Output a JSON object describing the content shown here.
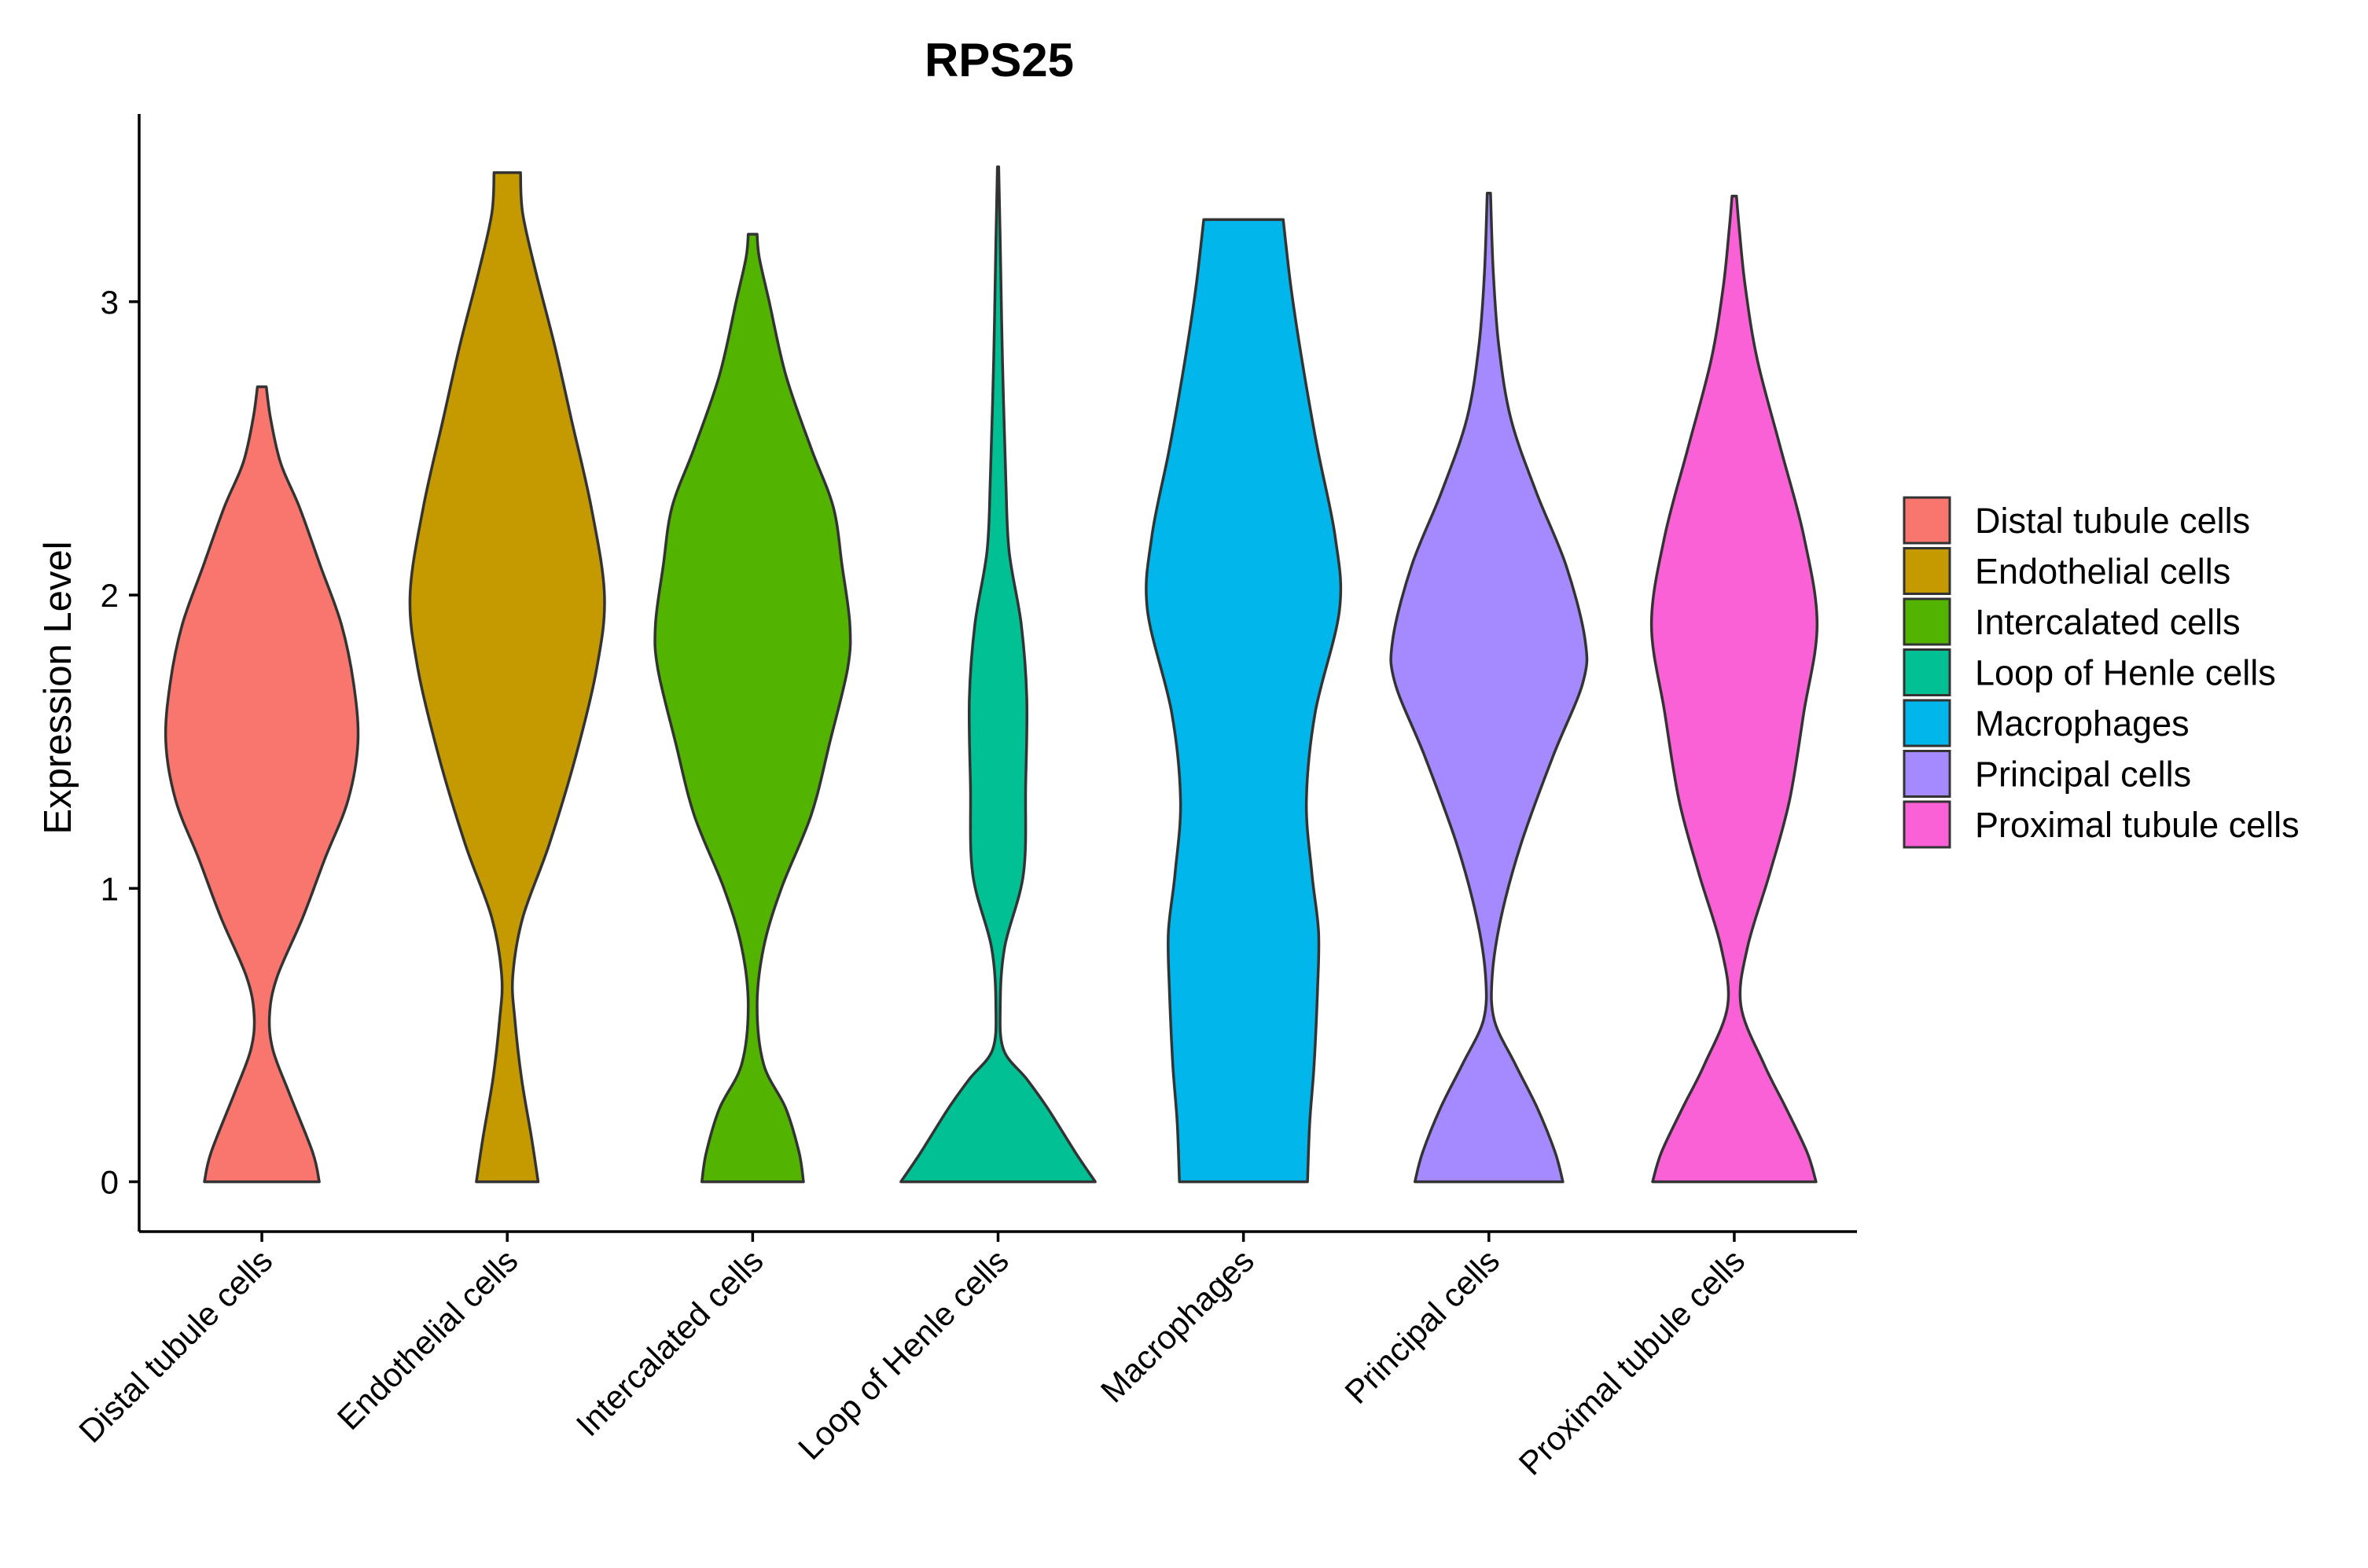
{
  "chart_data": {
    "type": "violin",
    "title": "RPS25",
    "xlabel": "",
    "ylabel": "Expression Level",
    "ylim": [
      -0.17,
      3.64
    ],
    "yticks": [
      0,
      1,
      2,
      3
    ],
    "grid": false,
    "legend_position": "right",
    "categories": [
      "Distal tubule cells",
      "Endothelial cells",
      "Intercalated cells",
      "Loop of Henle cells",
      "Macrophages",
      "Principal cells",
      "Proximal tubule cells"
    ],
    "series": [
      {
        "name": "Distal tubule cells",
        "color": "#F8766D",
        "ymin": 0,
        "ymax": 2.71,
        "profile": [
          [
            0,
            0.52
          ],
          [
            0.1,
            0.46
          ],
          [
            0.3,
            0.25
          ],
          [
            0.45,
            0.1
          ],
          [
            0.57,
            0.07
          ],
          [
            0.7,
            0.14
          ],
          [
            0.9,
            0.37
          ],
          [
            1.1,
            0.57
          ],
          [
            1.3,
            0.78
          ],
          [
            1.5,
            0.87
          ],
          [
            1.7,
            0.83
          ],
          [
            1.9,
            0.72
          ],
          [
            2.1,
            0.53
          ],
          [
            2.3,
            0.34
          ],
          [
            2.45,
            0.17
          ],
          [
            2.6,
            0.08
          ],
          [
            2.71,
            0.04
          ]
        ]
      },
      {
        "name": "Endothelial cells",
        "color": "#C49A00",
        "ymin": 0,
        "ymax": 3.44,
        "profile": [
          [
            0,
            0.28
          ],
          [
            0.15,
            0.22
          ],
          [
            0.35,
            0.13
          ],
          [
            0.55,
            0.07
          ],
          [
            0.7,
            0.05
          ],
          [
            0.9,
            0.14
          ],
          [
            1.15,
            0.38
          ],
          [
            1.45,
            0.62
          ],
          [
            1.75,
            0.81
          ],
          [
            2.0,
            0.88
          ],
          [
            2.3,
            0.76
          ],
          [
            2.6,
            0.58
          ],
          [
            2.85,
            0.43
          ],
          [
            3.1,
            0.26
          ],
          [
            3.3,
            0.14
          ],
          [
            3.44,
            0.12
          ]
        ]
      },
      {
        "name": "Intercalated cells",
        "color": "#53B400",
        "ymin": 0,
        "ymax": 3.23,
        "profile": [
          [
            0,
            0.46
          ],
          [
            0.1,
            0.42
          ],
          [
            0.25,
            0.3
          ],
          [
            0.4,
            0.1
          ],
          [
            0.6,
            0.04
          ],
          [
            0.8,
            0.1
          ],
          [
            1.0,
            0.26
          ],
          [
            1.25,
            0.53
          ],
          [
            1.5,
            0.7
          ],
          [
            1.75,
            0.86
          ],
          [
            1.9,
            0.88
          ],
          [
            2.1,
            0.81
          ],
          [
            2.3,
            0.73
          ],
          [
            2.5,
            0.53
          ],
          [
            2.75,
            0.3
          ],
          [
            3.0,
            0.15
          ],
          [
            3.15,
            0.06
          ],
          [
            3.23,
            0.04
          ]
        ]
      },
      {
        "name": "Loop of Henle cells",
        "color": "#00C094",
        "ymin": 0,
        "ymax": 3.46,
        "profile": [
          [
            0,
            0.88
          ],
          [
            0.1,
            0.7
          ],
          [
            0.25,
            0.45
          ],
          [
            0.35,
            0.26
          ],
          [
            0.45,
            0.05
          ],
          [
            0.6,
            0.02
          ],
          [
            0.8,
            0.06
          ],
          [
            1.05,
            0.23
          ],
          [
            1.35,
            0.25
          ],
          [
            1.65,
            0.26
          ],
          [
            1.9,
            0.21
          ],
          [
            2.15,
            0.1
          ],
          [
            2.4,
            0.07
          ],
          [
            2.8,
            0.04
          ],
          [
            3.2,
            0.02
          ],
          [
            3.46,
            0.006
          ]
        ]
      },
      {
        "name": "Macrophages",
        "color": "#00B6EB",
        "ymin": 0,
        "ymax": 3.28,
        "profile": [
          [
            0,
            0.58
          ],
          [
            0.2,
            0.6
          ],
          [
            0.4,
            0.64
          ],
          [
            0.65,
            0.67
          ],
          [
            0.85,
            0.68
          ],
          [
            1.05,
            0.62
          ],
          [
            1.3,
            0.57
          ],
          [
            1.6,
            0.65
          ],
          [
            1.95,
            0.87
          ],
          [
            2.2,
            0.83
          ],
          [
            2.5,
            0.67
          ],
          [
            2.8,
            0.53
          ],
          [
            3.05,
            0.43
          ],
          [
            3.28,
            0.36
          ]
        ]
      },
      {
        "name": "Principal cells",
        "color": "#A58AFF",
        "ymin": 0,
        "ymax": 3.37,
        "profile": [
          [
            0,
            0.67
          ],
          [
            0.1,
            0.6
          ],
          [
            0.25,
            0.44
          ],
          [
            0.4,
            0.24
          ],
          [
            0.55,
            0.05
          ],
          [
            0.7,
            0.03
          ],
          [
            0.9,
            0.11
          ],
          [
            1.15,
            0.29
          ],
          [
            1.45,
            0.58
          ],
          [
            1.7,
            0.85
          ],
          [
            1.85,
            0.87
          ],
          [
            2.1,
            0.7
          ],
          [
            2.35,
            0.43
          ],
          [
            2.6,
            0.2
          ],
          [
            2.85,
            0.09
          ],
          [
            3.1,
            0.04
          ],
          [
            3.37,
            0.015
          ]
        ]
      },
      {
        "name": "Proximal tubule cells",
        "color": "#FB61D7",
        "ymin": 0,
        "ymax": 3.36,
        "profile": [
          [
            0,
            0.74
          ],
          [
            0.1,
            0.66
          ],
          [
            0.25,
            0.47
          ],
          [
            0.4,
            0.27
          ],
          [
            0.6,
            0.06
          ],
          [
            0.8,
            0.12
          ],
          [
            1.05,
            0.32
          ],
          [
            1.3,
            0.5
          ],
          [
            1.6,
            0.63
          ],
          [
            1.9,
            0.75
          ],
          [
            2.2,
            0.63
          ],
          [
            2.5,
            0.42
          ],
          [
            2.8,
            0.21
          ],
          [
            3.05,
            0.1
          ],
          [
            3.25,
            0.045
          ],
          [
            3.36,
            0.02
          ]
        ]
      }
    ]
  }
}
